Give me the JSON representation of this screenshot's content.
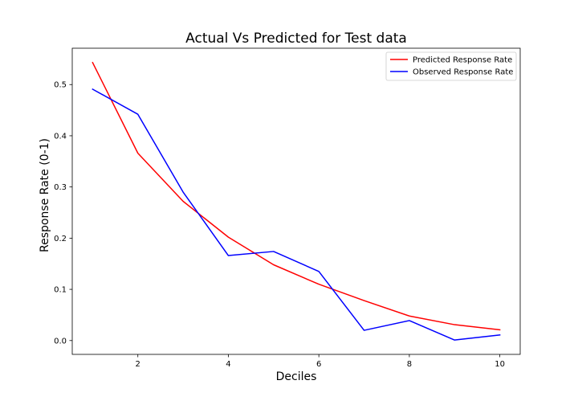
{
  "chart_data": {
    "type": "line",
    "title": "Actual Vs Predicted for Test data",
    "xlabel": "Deciles",
    "ylabel": "Response Rate (0-1)",
    "x": [
      1,
      2,
      3,
      4,
      5,
      6,
      7,
      8,
      9,
      10
    ],
    "xlim": [
      0.55,
      10.45
    ],
    "ylim": [
      -0.027,
      0.571
    ],
    "xticks": [
      2,
      4,
      6,
      8,
      10
    ],
    "yticks": [
      0.0,
      0.1,
      0.2,
      0.3,
      0.4,
      0.5
    ],
    "ytick_labels": [
      "0.0",
      "0.1",
      "0.2",
      "0.3",
      "0.4",
      "0.5"
    ],
    "grid": false,
    "legend_position": "top-right",
    "series": [
      {
        "name": "Predicted Response Rate",
        "color": "#ff0000",
        "values": [
          0.543,
          0.366,
          0.272,
          0.202,
          0.148,
          0.11,
          0.078,
          0.048,
          0.031,
          0.021
        ]
      },
      {
        "name": "Observed Response Rate",
        "color": "#0000ff",
        "values": [
          0.491,
          0.442,
          0.29,
          0.166,
          0.174,
          0.135,
          0.02,
          0.039,
          0.001,
          0.011
        ]
      }
    ]
  }
}
